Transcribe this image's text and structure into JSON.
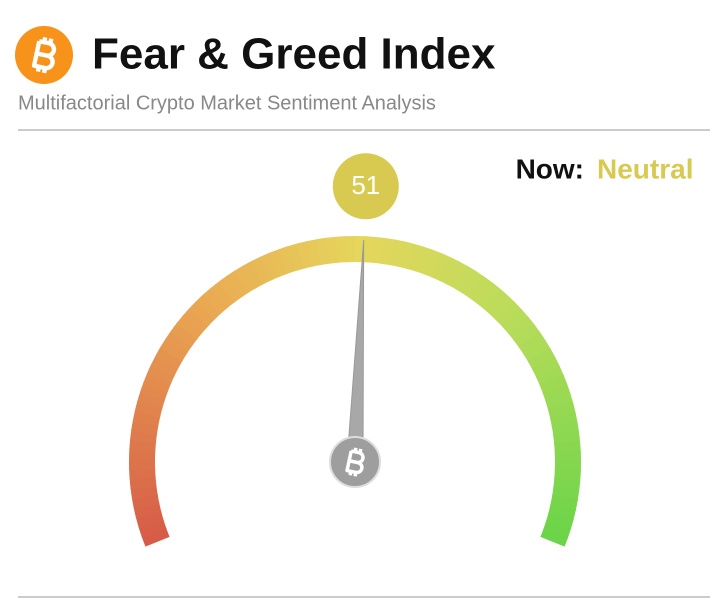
{
  "chart_data": {
    "type": "gauge",
    "title": "Fear & Greed Index",
    "subtitle": "Multifactorial Crypto Market Sentiment Analysis",
    "value": 51,
    "now_label": "Now:",
    "classification": "Neutral",
    "color": "#d8c951",
    "ylim": [
      0,
      100
    ]
  }
}
